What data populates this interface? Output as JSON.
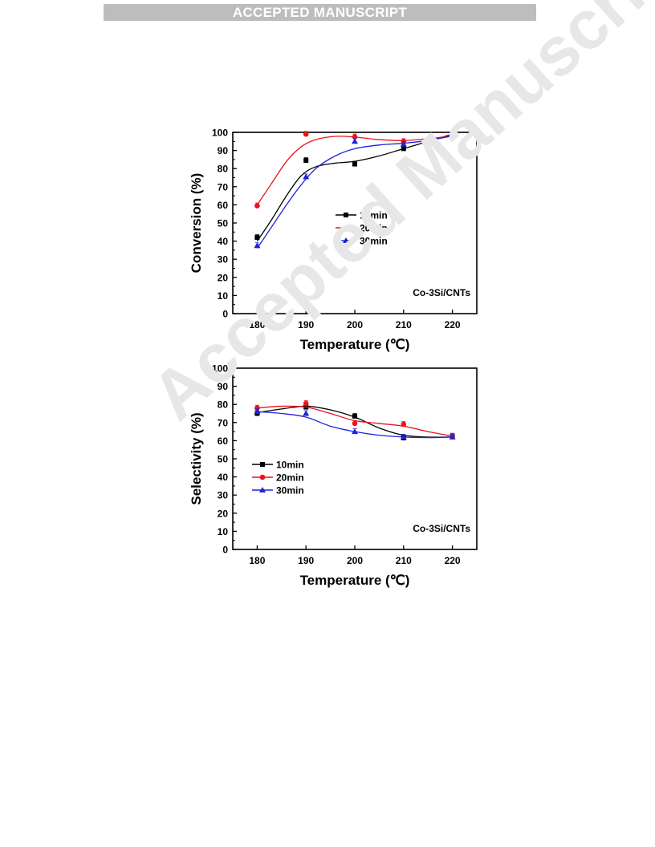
{
  "banner": {
    "text": "ACCEPTED MANUSCRIPT"
  },
  "watermark": {
    "text": "Accepted Manuscript"
  },
  "chart_data": [
    {
      "type": "line",
      "xlabel": "Temperature (℃)",
      "ylabel": "Conversion (%)",
      "annotation": "Co-3Si/CNTs",
      "x": [
        180,
        190,
        200,
        210,
        220
      ],
      "xlim": [
        175,
        225
      ],
      "ylim": [
        0,
        100
      ],
      "yticks": [
        0,
        10,
        20,
        30,
        40,
        50,
        60,
        70,
        80,
        90,
        100
      ],
      "legend_position": "center",
      "series": [
        {
          "name": "10min",
          "color": "#000000",
          "marker": "square",
          "values": [
            42,
            84.5,
            82.5,
            91,
            99
          ],
          "curve": [
            [
              180,
              40
            ],
            [
              183,
              52
            ],
            [
              186,
              65
            ],
            [
              189,
              76
            ],
            [
              192,
              81
            ],
            [
              196,
              83
            ],
            [
              200,
              84
            ],
            [
              205,
              87
            ],
            [
              210,
              91
            ],
            [
              215,
              95
            ],
            [
              220,
              99
            ]
          ]
        },
        {
          "name": "20min",
          "color": "#e8141c",
          "marker": "circle",
          "values": [
            59.5,
            99,
            97.5,
            95,
            98
          ],
          "curve": [
            [
              180,
              60
            ],
            [
              183,
              72
            ],
            [
              186,
              84
            ],
            [
              189,
              92
            ],
            [
              192,
              96
            ],
            [
              196,
              97.8
            ],
            [
              200,
              97.4
            ],
            [
              205,
              96
            ],
            [
              210,
              95.5
            ],
            [
              215,
              96.5
            ],
            [
              220,
              98
            ]
          ]
        },
        {
          "name": "30min",
          "color": "#1e22d8",
          "marker": "triangle",
          "values": [
            37.5,
            75.5,
            95,
            93.5,
            98
          ],
          "curve": [
            [
              180,
              36
            ],
            [
              183,
              48
            ],
            [
              186,
              60
            ],
            [
              189,
              71
            ],
            [
              192,
              80
            ],
            [
              196,
              87
            ],
            [
              200,
              91
            ],
            [
              205,
              93
            ],
            [
              210,
              94
            ],
            [
              215,
              95.5
            ],
            [
              220,
              98
            ]
          ]
        }
      ]
    },
    {
      "type": "line",
      "xlabel": "Temperature (℃)",
      "ylabel": "Selectivity (%)",
      "annotation": "Co-3Si/CNTs",
      "x": [
        180,
        190,
        200,
        210,
        220
      ],
      "xlim": [
        175,
        225
      ],
      "ylim": [
        0,
        100
      ],
      "yticks": [
        0,
        10,
        20,
        30,
        40,
        50,
        60,
        70,
        80,
        90,
        100
      ],
      "legend_position": "center-left",
      "series": [
        {
          "name": "10min",
          "color": "#000000",
          "marker": "square",
          "values": [
            75,
            78.5,
            73.5,
            61.5,
            62.5
          ],
          "curve": [
            [
              180,
              75.5
            ],
            [
              185,
              77.5
            ],
            [
              190,
              79
            ],
            [
              195,
              77
            ],
            [
              200,
              73
            ],
            [
              205,
              67
            ],
            [
              210,
              63
            ],
            [
              215,
              62
            ],
            [
              220,
              62
            ]
          ]
        },
        {
          "name": "20min",
          "color": "#e8141c",
          "marker": "circle",
          "values": [
            78,
            80.5,
            69.5,
            69,
            62.5
          ],
          "curve": [
            [
              180,
              78
            ],
            [
              185,
              79
            ],
            [
              190,
              78.5
            ],
            [
              195,
              75
            ],
            [
              200,
              71
            ],
            [
              205,
              69.5
            ],
            [
              210,
              68
            ],
            [
              215,
              65
            ],
            [
              220,
              62.5
            ]
          ]
        },
        {
          "name": "30min",
          "color": "#1e22d8",
          "marker": "triangle",
          "values": [
            76,
            75,
            65,
            62,
            62
          ],
          "curve": [
            [
              180,
              76
            ],
            [
              185,
              75
            ],
            [
              190,
              73
            ],
            [
              195,
              68
            ],
            [
              200,
              65
            ],
            [
              205,
              63
            ],
            [
              210,
              62
            ],
            [
              215,
              61.7
            ],
            [
              220,
              62
            ]
          ]
        }
      ]
    }
  ]
}
